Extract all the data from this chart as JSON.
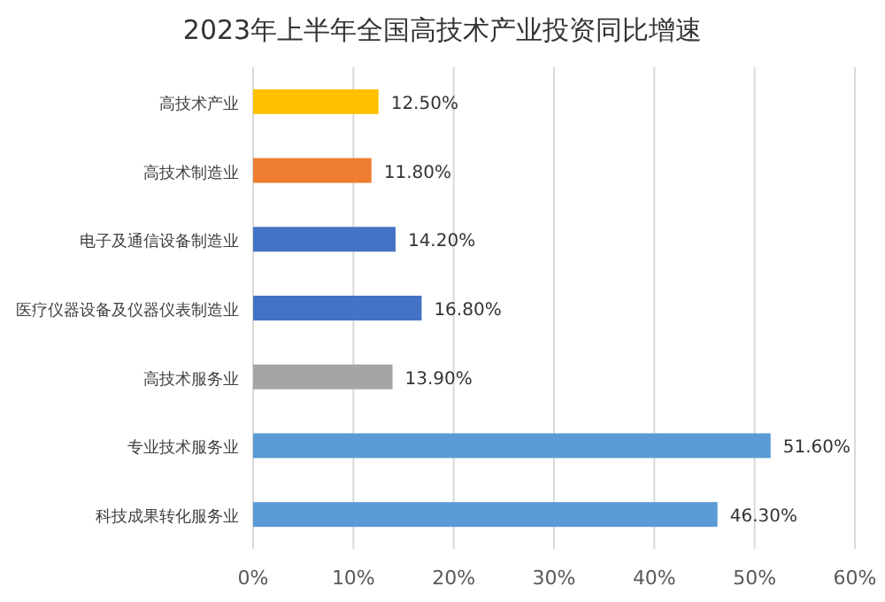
{
  "chart_data": {
    "type": "bar",
    "orientation": "horizontal",
    "title": "2023年上半年全国高技术产业投资同比增速",
    "categories": [
      "高技术产业",
      "高技术制造业",
      "电子及通信设备制造业",
      "医疗仪器设备及仪器仪表制造业",
      "高技术服务业",
      "专业技术服务业",
      "科技成果转化服务业"
    ],
    "values": [
      12.5,
      11.8,
      14.2,
      16.8,
      13.9,
      51.6,
      46.3
    ],
    "value_labels": [
      "12.50%",
      "11.80%",
      "14.20%",
      "16.80%",
      "13.90%",
      "51.60%",
      "46.30%"
    ],
    "colors": [
      "#ffc000",
      "#ed7d31",
      "#4472c4",
      "#4472c4",
      "#a5a5a5",
      "#5b9bd5",
      "#5b9bd5"
    ],
    "xlim": [
      0,
      60
    ],
    "xticks": [
      {
        "value": 0,
        "label": "0%"
      },
      {
        "value": 10,
        "label": "10%"
      },
      {
        "value": 20,
        "label": "20%"
      },
      {
        "value": 30,
        "label": "30%"
      },
      {
        "value": 40,
        "label": "40%"
      },
      {
        "value": 50,
        "label": "50%"
      },
      {
        "value": 60,
        "label": "60%"
      }
    ],
    "grid": "x"
  }
}
